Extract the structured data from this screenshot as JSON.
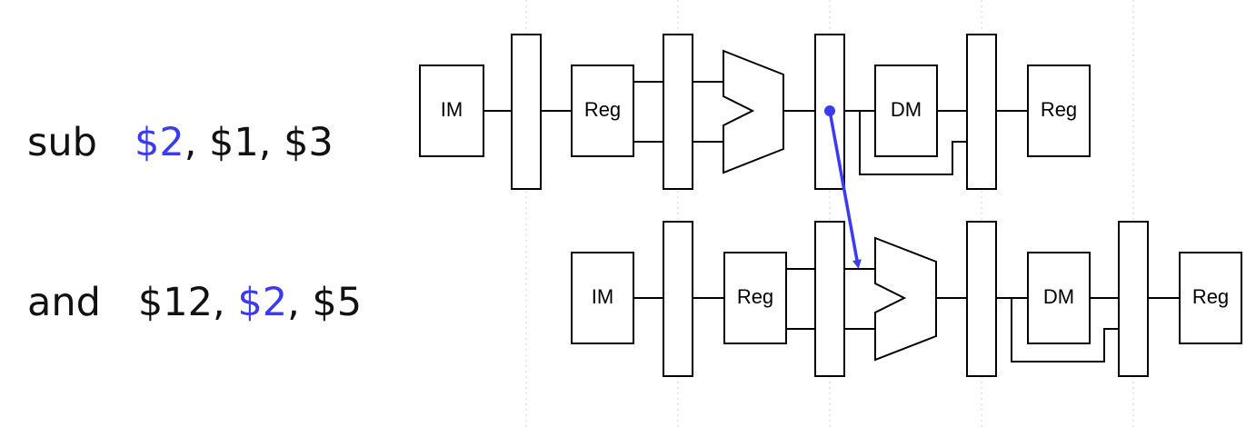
{
  "instructions": [
    {
      "op": "sub",
      "dest": "$2",
      "rest": ", $1, $3"
    },
    {
      "op": "and",
      "prefix": "$12, ",
      "src": "$2",
      "rest": ", $5"
    }
  ],
  "stages": {
    "instruction_memory": "IM",
    "register_file": "Reg",
    "data_memory": "DM",
    "write_back": "Reg"
  },
  "colors": {
    "highlight": "#3b3bf0",
    "line": "#000000",
    "guide": "#d0d0d0"
  }
}
